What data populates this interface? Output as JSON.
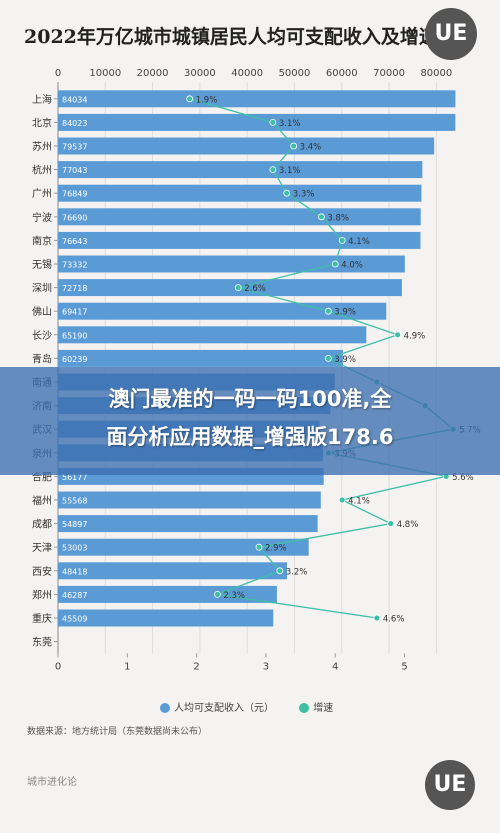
{
  "title": "2022年万亿城市城镇居民人均可支配收入及增速",
  "logo": "UE",
  "banner": {
    "line1": "澳门最准的一码一码100准,全",
    "line2": "面分析应用数据_增强版178.6"
  },
  "legend": {
    "income_label": "人均可支配收入（元）",
    "growth_label": "增速"
  },
  "source": "数据来源：地方统计局（东莞数据尚未公布）",
  "brand": "城市进化论",
  "colors": {
    "bar": "#5b9bd5",
    "line": "#3dbfa6",
    "grid": "#dddddd",
    "banner": "#3c6eaf"
  },
  "chart_data": {
    "type": "bar",
    "orientation": "horizontal",
    "title": "2022年万亿城市城镇居民人均可支配收入及增速",
    "categories": [
      "上海",
      "北京",
      "苏州",
      "杭州",
      "广州",
      "宁波",
      "南京",
      "无锡",
      "深圳",
      "佛山",
      "长沙",
      "青岛",
      "南通",
      "济南",
      "武汉",
      "泉州",
      "合肥",
      "福州",
      "成都",
      "天津",
      "西安",
      "郑州",
      "重庆",
      "东莞"
    ],
    "top_axis": {
      "label": "人均可支配收入（元）",
      "range": [
        0,
        85000
      ],
      "ticks": [
        "0",
        "10000",
        "20000",
        "30000",
        "40000",
        "50000",
        "60000",
        "70000",
        "80000"
      ]
    },
    "bottom_axis": {
      "label": "增速 (%)",
      "range": [
        0,
        5.8
      ],
      "ticks": [
        "0",
        "1",
        "2",
        "3",
        "4",
        "5"
      ]
    },
    "series": [
      {
        "name": "人均可支配收入（元）",
        "type": "bar",
        "values": [
          84034,
          84023,
          79537,
          77043,
          76849,
          76690,
          76643,
          73332,
          72718,
          69417,
          65190,
          60239,
          58500,
          57600,
          55297,
          56000,
          56177,
          55568,
          54897,
          53003,
          48418,
          46287,
          45509,
          null
        ],
        "value_labels": [
          "84034",
          "84023",
          "79537",
          "77043",
          "76849",
          "76690",
          "76643",
          "73332",
          "72718",
          "69417",
          "65190",
          "60239",
          "",
          "",
          "",
          "",
          "56177",
          "55568",
          "54897",
          "53003",
          "48418",
          "46287",
          "45509",
          ""
        ]
      },
      {
        "name": "增速",
        "type": "line",
        "values": [
          1.9,
          3.1,
          3.4,
          3.1,
          3.3,
          3.8,
          4.1,
          4.0,
          2.6,
          3.9,
          4.9,
          3.9,
          4.6,
          5.3,
          5.7,
          3.9,
          5.6,
          4.1,
          4.8,
          2.9,
          3.2,
          2.3,
          4.6,
          null
        ],
        "value_labels": [
          "1.9%",
          "3.1%",
          "3.4%",
          "3.1%",
          "3.3%",
          "3.8%",
          "4.1%",
          "4.0%",
          "2.6%",
          "3.9%",
          "4.9%",
          "3.9%",
          "",
          "",
          "5.7%",
          "3.9%",
          "5.6%",
          "4.1%",
          "4.8%",
          "2.9%",
          "3.2%",
          "2.3%",
          "4.6%",
          ""
        ]
      }
    ]
  }
}
